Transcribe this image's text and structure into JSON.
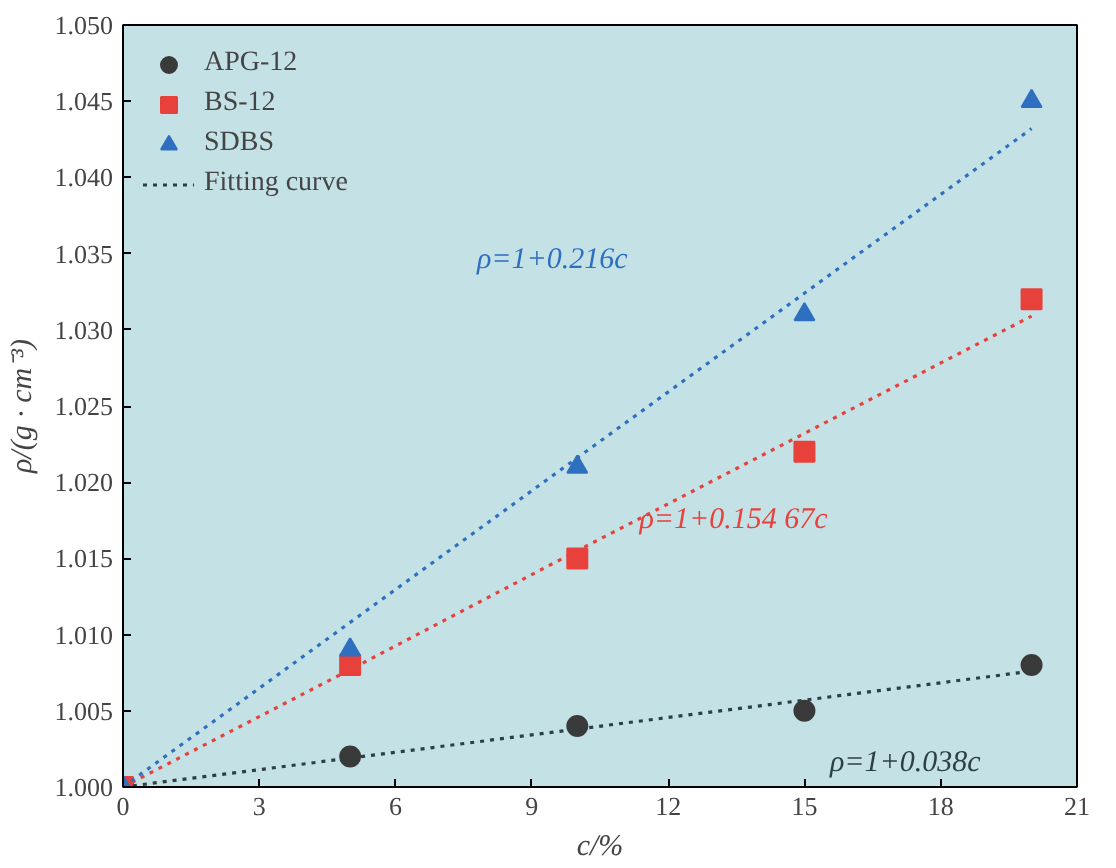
{
  "chart_data": {
    "type": "scatter",
    "xlabel": "c/%",
    "ylabel": "ρ/(g · cm⁻³)",
    "x": [
      0,
      5,
      10,
      15,
      20
    ],
    "series": [
      {
        "name": "APG-12",
        "color": "#3a3a3a",
        "marker": "circle",
        "values": [
          null,
          1.002,
          1.004,
          1.005,
          1.008
        ]
      },
      {
        "name": "BS-12",
        "color": "#e8413c",
        "marker": "square",
        "values": [
          1.0,
          1.008,
          1.015,
          1.022,
          1.032
        ]
      },
      {
        "name": "SDBS",
        "color": "#2f6fc0",
        "marker": "triangle",
        "values": [
          1.0,
          1.009,
          1.021,
          1.031,
          1.045
        ]
      },
      {
        "name": "Fitting curve",
        "type": "line",
        "line_style": "dotted",
        "color": "#2b3f44",
        "values": [
          1.0,
          1.0019,
          1.0038,
          1.0057,
          1.0076
        ]
      },
      {
        "type": "line",
        "line_style": "dotted",
        "color": "#e8413c",
        "values": [
          1.0,
          1.0077,
          1.0155,
          1.0232,
          1.0309
        ]
      },
      {
        "type": "line",
        "line_style": "dotted",
        "color": "#2f6fc0",
        "values": [
          1.0,
          1.0108,
          1.0216,
          1.0324,
          1.0432
        ]
      }
    ],
    "annotations": [
      "ρ=1+0.216c",
      "ρ=1+0.154 67c",
      "ρ=1+0.038c"
    ],
    "xlim": [
      0,
      21
    ],
    "xticks": [
      0,
      3,
      6,
      9,
      12,
      15,
      18,
      21
    ],
    "ylim": [
      1.0,
      1.05
    ],
    "yticks": [
      {
        "value": 1.0,
        "label": "1.000"
      },
      {
        "value": 1.005,
        "label": "1.005"
      },
      {
        "value": 1.01,
        "label": "1.010"
      },
      {
        "value": 1.015,
        "label": "1.015"
      },
      {
        "value": 1.02,
        "label": "1.020"
      },
      {
        "value": 1.025,
        "label": "1.025"
      },
      {
        "value": 1.03,
        "label": "1.030"
      },
      {
        "value": 1.035,
        "label": "1.035"
      },
      {
        "value": 1.04,
        "label": "1.040"
      },
      {
        "value": 1.045,
        "label": "1.045"
      },
      {
        "value": 1.05,
        "label": "1.050"
      }
    ],
    "legend": "top left",
    "grid": false
  }
}
